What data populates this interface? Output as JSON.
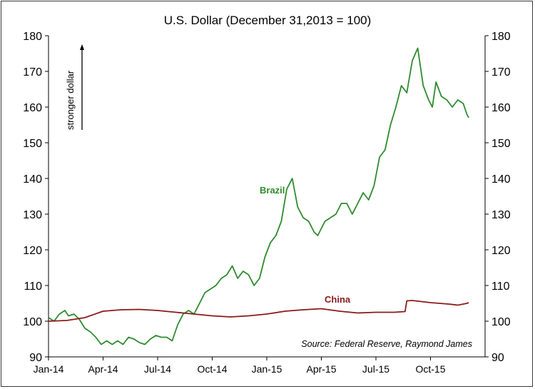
{
  "chart_data": {
    "type": "line",
    "title": "U.S. Dollar (December 31,2013 = 100)",
    "ylim": [
      90,
      180
    ],
    "yticks": [
      90,
      100,
      110,
      120,
      130,
      140,
      150,
      160,
      170,
      180
    ],
    "ytick_labels": [
      "90",
      "100",
      "110",
      "120",
      "130",
      "140",
      "150",
      "160",
      "170",
      "180"
    ],
    "xlim": [
      0,
      24
    ],
    "xtick_labels": [
      "Jan-14",
      "Apr-14",
      "Jul-14",
      "Oct-14",
      "Jan-15",
      "Apr-15",
      "Jul-15",
      "Oct-15"
    ],
    "ylabel_note": "stronger dollar",
    "source": "Source: Federal Reserve, Raymond James",
    "grid": false,
    "series": [
      {
        "name": "Brazil",
        "color": "#2e8b2e",
        "x": [
          0,
          0.3,
          0.6,
          0.9,
          1.1,
          1.4,
          1.7,
          2.0,
          2.3,
          2.6,
          2.9,
          3.2,
          3.5,
          3.8,
          4.1,
          4.4,
          4.7,
          5.0,
          5.3,
          5.6,
          5.9,
          6.2,
          6.5,
          6.8,
          7.1,
          7.4,
          7.7,
          8.0,
          8.3,
          8.6,
          8.9,
          9.2,
          9.5,
          9.8,
          10.1,
          10.4,
          10.7,
          11.0,
          11.3,
          11.6,
          11.9,
          12.2,
          12.5,
          12.8,
          13.1,
          13.4,
          13.7,
          14.0,
          14.3,
          14.6,
          14.8,
          15.0,
          15.2,
          15.5,
          15.8,
          16.1,
          16.4,
          16.7,
          17.0,
          17.3,
          17.6,
          17.9,
          18.2,
          18.5,
          18.8,
          19.1,
          19.4,
          19.7,
          20.0,
          20.3,
          20.6,
          20.9,
          21.1,
          21.3,
          21.6,
          21.9,
          22.2,
          22.5,
          22.8,
          23.0,
          23.1
        ],
        "values": [
          101,
          100,
          102,
          103,
          101.5,
          102,
          100.5,
          98,
          97,
          95.5,
          93.5,
          94.5,
          93.5,
          94.5,
          93.5,
          95.5,
          95,
          94,
          93.5,
          95,
          96,
          95.5,
          95.5,
          94.5,
          99,
          102,
          103,
          102,
          105,
          108,
          109,
          110,
          112,
          113,
          115.5,
          112,
          114,
          113,
          110,
          112,
          118,
          122,
          124,
          128,
          137,
          140,
          132,
          129,
          128,
          125,
          124,
          126,
          128,
          129,
          130,
          133,
          133,
          130,
          133,
          136,
          134,
          138,
          146,
          148,
          155,
          160,
          166,
          164,
          173,
          176.5,
          166,
          162,
          160,
          167,
          163,
          162,
          160,
          162,
          161,
          158,
          157
        ]
      },
      {
        "name": "China",
        "color": "#8b1a1a",
        "x": [
          0,
          1,
          2,
          3,
          4,
          5,
          6,
          7,
          8,
          9,
          10,
          11,
          12,
          13,
          14,
          15,
          16,
          17,
          18,
          19,
          19.6,
          19.7,
          20,
          20.5,
          21,
          21.5,
          22,
          22.5,
          23,
          23.1
        ],
        "values": [
          100,
          100.2,
          101,
          102.8,
          103.2,
          103.3,
          103,
          102.5,
          102,
          101.5,
          101.2,
          101.5,
          102,
          102.8,
          103.2,
          103.5,
          102.8,
          102.3,
          102.5,
          102.5,
          102.7,
          105.7,
          105.8,
          105.5,
          105.2,
          105,
          104.8,
          104.5,
          105,
          105.2
        ]
      }
    ]
  }
}
